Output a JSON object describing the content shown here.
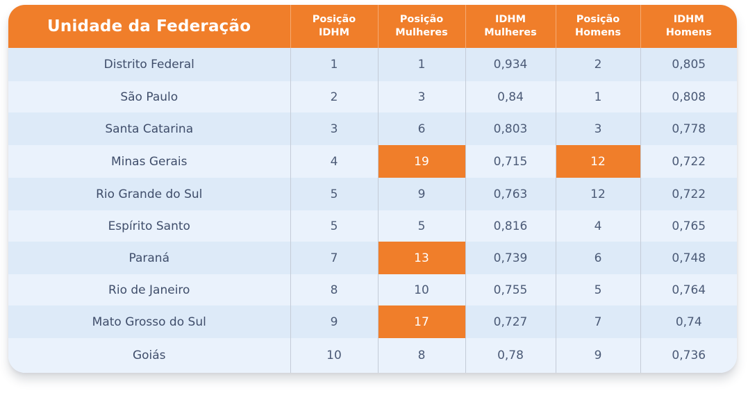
{
  "colors": {
    "header_bg": "#f07e2a",
    "highlight": "#f07e2a",
    "row_dark": "#ddeaf8",
    "row_light": "#eaf2fc",
    "text": "#4b5a76"
  },
  "table": {
    "headers": [
      [
        "Unidade da Federação"
      ],
      [
        "Posição",
        "IDHM"
      ],
      [
        "Posição",
        "Mulheres"
      ],
      [
        "IDHM",
        "Mulheres"
      ],
      [
        "Posição",
        "Homens"
      ],
      [
        "IDHM",
        "Homens"
      ]
    ],
    "rows": [
      {
        "cells": [
          "Distrito Federal",
          "1",
          "1",
          "0,934",
          "2",
          "0,805"
        ],
        "highlight": []
      },
      {
        "cells": [
          "São Paulo",
          "2",
          "3",
          "0,84",
          "1",
          "0,808"
        ],
        "highlight": []
      },
      {
        "cells": [
          "Santa Catarina",
          "3",
          "6",
          "0,803",
          "3",
          "0,778"
        ],
        "highlight": []
      },
      {
        "cells": [
          "Minas Gerais",
          "4",
          "19",
          "0,715",
          "12",
          "0,722"
        ],
        "highlight": [
          2,
          4
        ]
      },
      {
        "cells": [
          "Rio Grande do Sul",
          "5",
          "9",
          "0,763",
          "12",
          "0,722"
        ],
        "highlight": []
      },
      {
        "cells": [
          "Espírito Santo",
          "5",
          "5",
          "0,816",
          "4",
          "0,765"
        ],
        "highlight": []
      },
      {
        "cells": [
          "Paraná",
          "7",
          "13",
          "0,739",
          "6",
          "0,748"
        ],
        "highlight": [
          2
        ]
      },
      {
        "cells": [
          "Rio de Janeiro",
          "8",
          "10",
          "0,755",
          "5",
          "0,764"
        ],
        "highlight": []
      },
      {
        "cells": [
          "Mato Grosso do Sul",
          "9",
          "17",
          "0,727",
          "7",
          "0,74"
        ],
        "highlight": [
          2
        ]
      },
      {
        "cells": [
          "Goiás",
          "10",
          "8",
          "0,78",
          "9",
          "0,736"
        ],
        "highlight": []
      }
    ]
  }
}
